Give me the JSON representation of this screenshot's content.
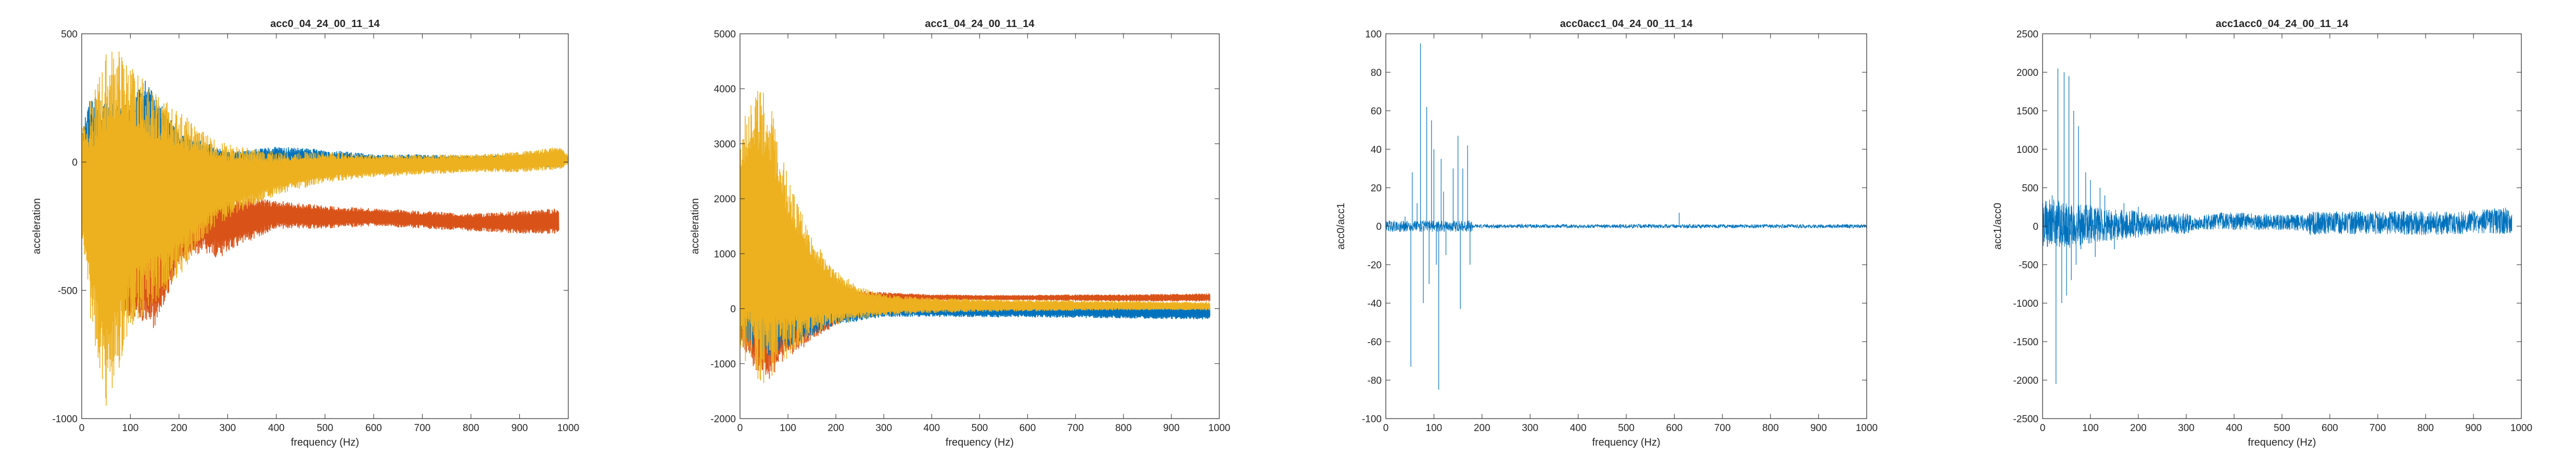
{
  "colors": {
    "blue": "#0072BD",
    "orange": "#D95319",
    "yellow": "#EDB120",
    "axis": "#262626"
  },
  "chart_data": [
    {
      "type": "line",
      "title": "acc0_04_24_00_11_14",
      "xlabel": "frequency (Hz)",
      "ylabel": "acceleration",
      "xlim": [
        0,
        1000
      ],
      "ylim": [
        -1000,
        500
      ],
      "xticks": [
        "0",
        "100",
        "200",
        "300",
        "400",
        "500",
        "600",
        "700",
        "800",
        "900",
        "1000"
      ],
      "yticks": [
        "-1000",
        "-500",
        "0",
        "500"
      ],
      "grid": false,
      "series_envelopes": [
        {
          "color": "blue",
          "x": [
            0,
            20,
            50,
            100,
            130,
            200,
            300,
            400,
            500,
            600,
            700,
            800,
            900,
            980
          ],
          "upper": [
            150,
            270,
            230,
            230,
            320,
            120,
            40,
            60,
            50,
            30,
            30,
            25,
            30,
            40
          ],
          "lower": [
            -120,
            -200,
            -150,
            -80,
            -60,
            -60,
            -50,
            -50,
            -40,
            -40,
            -30,
            -20,
            -20,
            -20
          ]
        },
        {
          "color": "orange",
          "x": [
            0,
            20,
            50,
            100,
            150,
            200,
            250,
            280,
            300,
            400,
            500,
            600,
            700,
            800,
            900,
            980
          ],
          "upper": [
            -150,
            -180,
            -200,
            -250,
            -200,
            -150,
            -100,
            -60,
            -120,
            -150,
            -170,
            -180,
            -190,
            -200,
            -190,
            -180
          ],
          "lower": [
            -250,
            -450,
            -600,
            -600,
            -650,
            -400,
            -350,
            -380,
            -350,
            -260,
            -260,
            -250,
            -260,
            -270,
            -280,
            -280
          ]
        },
        {
          "color": "yellow",
          "x": [
            0,
            20,
            50,
            70,
            100,
            150,
            200,
            250,
            300,
            400,
            500,
            600,
            700,
            800,
            900,
            980,
            1000
          ],
          "upper": [
            150,
            250,
            420,
            450,
            380,
            270,
            200,
            120,
            70,
            40,
            40,
            30,
            30,
            30,
            40,
            60,
            30
          ],
          "lower": [
            -300,
            -650,
            -950,
            -850,
            -650,
            -550,
            -450,
            -300,
            -220,
            -130,
            -80,
            -60,
            -50,
            -40,
            -40,
            -30,
            -10
          ]
        }
      ]
    },
    {
      "type": "line",
      "title": "acc1_04_24_00_11_14",
      "xlabel": "frequency (Hz)",
      "ylabel": "acceleration",
      "xlim": [
        0,
        1000
      ],
      "ylim": [
        -2000,
        5000
      ],
      "xticks": [
        "0",
        "100",
        "200",
        "300",
        "400",
        "500",
        "600",
        "700",
        "800",
        "900",
        "1000"
      ],
      "yticks": [
        "-2000",
        "-1000",
        "0",
        "1000",
        "2000",
        "3000",
        "4000",
        "5000"
      ],
      "grid": false,
      "series_envelopes": [
        {
          "color": "orange",
          "x": [
            0,
            30,
            60,
            100,
            200,
            300,
            400,
            500,
            600,
            700,
            800,
            900,
            980
          ],
          "upper": [
            200,
            600,
            700,
            500,
            350,
            300,
            260,
            250,
            250,
            260,
            260,
            270,
            280
          ],
          "lower": [
            -600,
            -1100,
            -1300,
            -900,
            -300,
            100,
            150,
            150,
            150,
            140,
            130,
            130,
            130
          ]
        },
        {
          "color": "blue",
          "x": [
            0,
            30,
            60,
            100,
            200,
            300,
            400,
            500,
            600,
            700,
            800,
            900,
            980
          ],
          "upper": [
            800,
            1600,
            1200,
            800,
            300,
            150,
            120,
            100,
            90,
            80,
            70,
            70,
            70
          ],
          "lower": [
            -400,
            -800,
            -900,
            -700,
            -300,
            -150,
            -150,
            -160,
            -160,
            -170,
            -180,
            -190,
            -200
          ]
        },
        {
          "color": "yellow",
          "x": [
            0,
            20,
            40,
            60,
            80,
            100,
            150,
            200,
            250,
            300,
            400,
            500,
            600,
            700,
            800,
            900,
            980
          ],
          "upper": [
            3000,
            4050,
            4050,
            3800,
            3200,
            2400,
            1300,
            700,
            400,
            260,
            200,
            180,
            160,
            150,
            140,
            130,
            120
          ],
          "lower": [
            -800,
            -1200,
            -1400,
            -1300,
            -1100,
            -900,
            -500,
            -300,
            -200,
            -120,
            -80,
            -60,
            -50,
            -40,
            -30,
            -30,
            -30
          ]
        }
      ]
    },
    {
      "type": "line",
      "title": "acc0acc1_04_24_00_11_14",
      "xlabel": "frequency (Hz)",
      "ylabel": "acc0/acc1",
      "xlim": [
        0,
        1000
      ],
      "ylim": [
        -100,
        100
      ],
      "xticks": [
        "0",
        "100",
        "200",
        "300",
        "400",
        "500",
        "600",
        "700",
        "800",
        "900",
        "1000"
      ],
      "yticks": [
        "-100",
        "-80",
        "-60",
        "-40",
        "-20",
        "0",
        "20",
        "40",
        "60",
        "80",
        "100"
      ],
      "grid": false,
      "spikes": [
        [
          40,
          5
        ],
        [
          52,
          -73
        ],
        [
          55,
          28
        ],
        [
          65,
          12
        ],
        [
          72,
          95
        ],
        [
          78,
          -40
        ],
        [
          85,
          62
        ],
        [
          90,
          -30
        ],
        [
          95,
          55
        ],
        [
          100,
          40
        ],
        [
          105,
          -20
        ],
        [
          110,
          -85
        ],
        [
          115,
          35
        ],
        [
          120,
          18
        ],
        [
          125,
          -15
        ],
        [
          140,
          30
        ],
        [
          150,
          47
        ],
        [
          155,
          -43
        ],
        [
          160,
          30
        ],
        [
          170,
          42
        ],
        [
          175,
          -20
        ],
        [
          610,
          7
        ]
      ],
      "baseline_band": [
        [
          0,
          180,
          3
        ],
        [
          180,
          1000,
          1
        ]
      ]
    },
    {
      "type": "line",
      "title": "acc1acc0_04_24_00_11_14",
      "xlabel": "frequency (Hz)",
      "ylabel": "acc1/acc0",
      "xlim": [
        0,
        1000
      ],
      "ylim": [
        -2500,
        2500
      ],
      "xticks": [
        "0",
        "100",
        "200",
        "300",
        "400",
        "500",
        "600",
        "700",
        "800",
        "900",
        "1000"
      ],
      "yticks": [
        "-2500",
        "-2000",
        "-1500",
        "-1000",
        "-500",
        "0",
        "500",
        "1000",
        "1500",
        "2000",
        "2500"
      ],
      "grid": false,
      "spikes": [
        [
          20,
          400
        ],
        [
          28,
          -2050
        ],
        [
          32,
          2050
        ],
        [
          40,
          -1000
        ],
        [
          45,
          2000
        ],
        [
          50,
          -900
        ],
        [
          55,
          1950
        ],
        [
          60,
          -700
        ],
        [
          65,
          1500
        ],
        [
          70,
          -500
        ],
        [
          75,
          1300
        ],
        [
          80,
          -300
        ],
        [
          90,
          700
        ],
        [
          100,
          600
        ],
        [
          110,
          -400
        ],
        [
          120,
          500
        ],
        [
          130,
          400
        ],
        [
          150,
          -300
        ],
        [
          170,
          300
        ],
        [
          200,
          250
        ]
      ],
      "band_envelope": {
        "x": [
          0,
          20,
          40,
          80,
          120,
          160,
          200,
          250,
          300,
          320,
          350,
          400,
          500,
          550,
          560,
          600,
          700,
          800,
          900,
          950,
          980
        ],
        "upper": [
          300,
          400,
          300,
          300,
          250,
          220,
          200,
          150,
          180,
          100,
          170,
          180,
          150,
          150,
          190,
          190,
          200,
          200,
          210,
          230,
          250
        ],
        "lower": [
          -300,
          -300,
          -300,
          -250,
          -200,
          -180,
          -150,
          -100,
          -100,
          -50,
          -50,
          -50,
          -50,
          -60,
          -120,
          -100,
          -110,
          -120,
          -100,
          -110,
          -120
        ]
      }
    }
  ]
}
